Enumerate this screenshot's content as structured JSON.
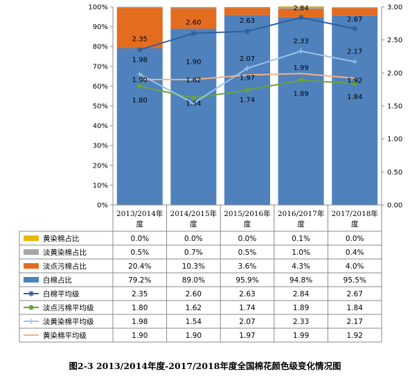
{
  "caption": "图2-3  2013/2014年度-2017/2018年度全国棉花颜色级变化情况图",
  "chart_data": {
    "type": "bar",
    "stacked": true,
    "categories": [
      "2013/2014年度",
      "2014/2015年度",
      "2015/2016年度",
      "2016/2017年度",
      "2017/2018年度"
    ],
    "category_lines": [
      [
        "2013/2014年",
        "度"
      ],
      [
        "2014/2015年",
        "度"
      ],
      [
        "2015/2016年",
        "度"
      ],
      [
        "2016/2017年",
        "度"
      ],
      [
        "2017/2018年",
        "度"
      ]
    ],
    "y_left": {
      "ticks": [
        "0%",
        "10%",
        "20%",
        "30%",
        "40%",
        "50%",
        "60%",
        "70%",
        "80%",
        "90%",
        "100%"
      ],
      "range": [
        0,
        100
      ]
    },
    "y_right": {
      "ticks": [
        "0.00",
        "0.50",
        "1.00",
        "1.50",
        "2.00",
        "2.50",
        "3.00"
      ],
      "range": [
        0,
        3
      ]
    },
    "bar_series": [
      {
        "name": "白棉占比",
        "color": "#4f81bd",
        "values": [
          79.2,
          89.0,
          95.9,
          94.8,
          95.5
        ],
        "labels": [
          "79.2%",
          "89.0%",
          "95.9%",
          "94.8%",
          "95.5%"
        ]
      },
      {
        "name": "淡点污棉占比",
        "color": "#e46c1f",
        "values": [
          20.4,
          10.3,
          3.6,
          4.3,
          4.0
        ],
        "labels": [
          "20.4%",
          "10.3%",
          "3.6%",
          "4.3%",
          "4.0%"
        ]
      },
      {
        "name": "淡黄染棉占比",
        "color": "#a5a5a5",
        "values": [
          0.5,
          0.7,
          0.5,
          1.0,
          0.4
        ],
        "labels": [
          "0.5%",
          "0.7%",
          "0.5%",
          "1.0%",
          "0.4%"
        ]
      },
      {
        "name": "黄染棉占比",
        "color": "#e8b80c",
        "values": [
          0.0,
          0.0,
          0.0,
          0.1,
          0.0
        ],
        "labels": [
          "0.0%",
          "0.0%",
          "0.0%",
          "0.1%",
          "0.0%"
        ]
      }
    ],
    "line_series": [
      {
        "name": "白棉平均级",
        "color": "#2e5f9e",
        "marker": "star",
        "values": [
          2.35,
          2.6,
          2.63,
          2.84,
          2.67
        ],
        "labels": [
          "2.35",
          "2.60",
          "2.63",
          "2.84",
          "2.67"
        ]
      },
      {
        "name": "淡点污棉平均级",
        "color": "#6aa33a",
        "marker": "circle",
        "values": [
          1.8,
          1.62,
          1.74,
          1.89,
          1.84
        ],
        "labels": [
          "1.80",
          "1.62",
          "1.74",
          "1.89",
          "1.84"
        ]
      },
      {
        "name": "淡黄染棉平均级",
        "color": "#9dc3e6",
        "marker": "plus",
        "values": [
          1.98,
          1.54,
          2.07,
          2.33,
          2.17
        ],
        "labels": [
          "1.98",
          "1.54",
          "2.07",
          "2.33",
          "2.17"
        ]
      },
      {
        "name": "黄染棉平均级",
        "color": "#f4b183",
        "marker": "none",
        "values": [
          1.9,
          1.9,
          1.97,
          1.99,
          1.92
        ],
        "labels": [
          "1.90",
          "1.90",
          "1.97",
          "1.99",
          "1.92"
        ]
      }
    ],
    "table_order": [
      "黄染棉占比",
      "淡黄染棉占比",
      "淡点污棉占比",
      "白棉占比",
      "白棉平均级",
      "淡点污棉平均级",
      "淡黄染棉平均级",
      "黄染棉平均级"
    ],
    "grid": false,
    "legend": "data-table"
  }
}
